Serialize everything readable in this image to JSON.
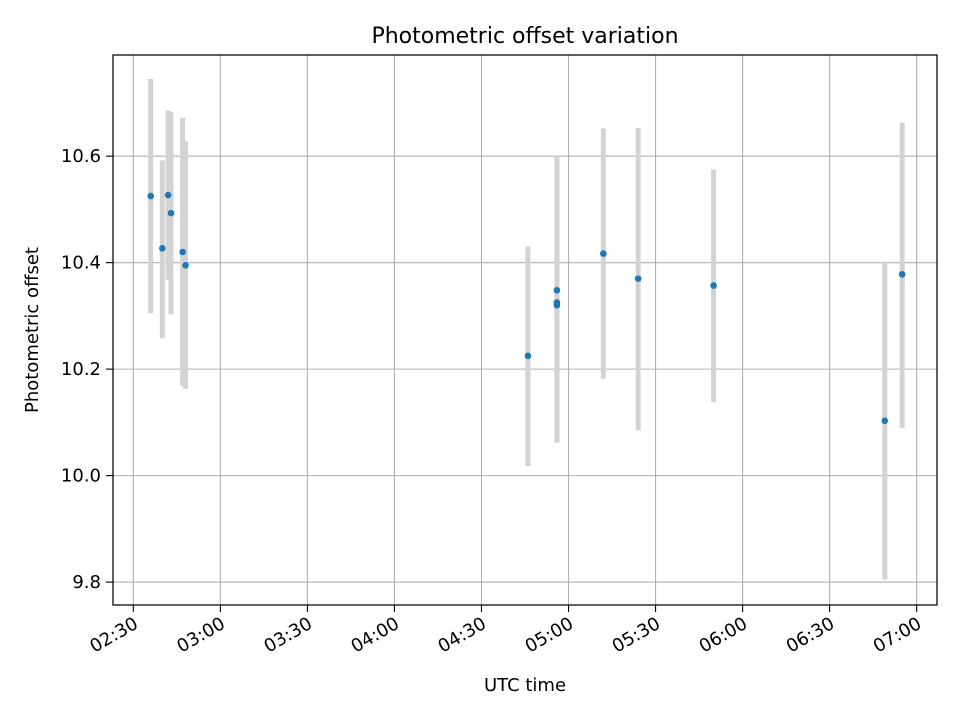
{
  "chart_data": {
    "type": "scatter",
    "title": "Photometric offset variation",
    "xlabel": "UTC time",
    "ylabel": "Photometric offset",
    "x_tick_labels": [
      "02:30",
      "03:00",
      "03:30",
      "04:00",
      "04:30",
      "05:00",
      "05:30",
      "06:00",
      "06:30",
      "07:00"
    ],
    "y_tick_labels": [
      "9.8",
      "10.0",
      "10.2",
      "10.4",
      "10.6"
    ],
    "x_ticks": [
      "02:30",
      "03:00",
      "03:30",
      "04:00",
      "04:30",
      "05:00",
      "05:30",
      "06:00",
      "06:30",
      "07:00"
    ],
    "y_ticks": [
      9.8,
      10.0,
      10.2,
      10.4,
      10.6
    ],
    "xlim": [
      "02:23",
      "07:07"
    ],
    "ylim": [
      9.757,
      10.79
    ],
    "grid": true,
    "marker_color": "#1f77b4",
    "errorbar_color": "#d3d3d3",
    "points": [
      {
        "time": "02:36",
        "y": 10.525,
        "err_low": 10.305,
        "err_high": 10.745
      },
      {
        "time": "02:40",
        "y": 10.427,
        "err_low": 10.258,
        "err_high": 10.592
      },
      {
        "time": "02:42",
        "y": 10.527,
        "err_low": 10.368,
        "err_high": 10.685
      },
      {
        "time": "02:43",
        "y": 10.493,
        "err_low": 10.303,
        "err_high": 10.683
      },
      {
        "time": "02:47",
        "y": 10.42,
        "err_low": 10.168,
        "err_high": 10.672
      },
      {
        "time": "02:48",
        "y": 10.395,
        "err_low": 10.163,
        "err_high": 10.628
      },
      {
        "time": "04:46",
        "y": 10.225,
        "err_low": 10.018,
        "err_high": 10.43
      },
      {
        "time": "04:56",
        "y": 10.32,
        "err_low": 10.062,
        "err_high": 10.58
      },
      {
        "time": "04:56",
        "y": 10.348,
        "err_low": 10.095,
        "err_high": 10.6
      },
      {
        "time": "04:56",
        "y": 10.325,
        "err_low": 10.065,
        "err_high": 10.59
      },
      {
        "time": "05:12",
        "y": 10.417,
        "err_low": 10.182,
        "err_high": 10.652
      },
      {
        "time": "05:24",
        "y": 10.37,
        "err_low": 10.085,
        "err_high": 10.653
      },
      {
        "time": "05:50",
        "y": 10.357,
        "err_low": 10.138,
        "err_high": 10.575
      },
      {
        "time": "06:49",
        "y": 10.103,
        "err_low": 9.805,
        "err_high": 10.4
      },
      {
        "time": "06:55",
        "y": 10.378,
        "err_low": 10.09,
        "err_high": 10.663
      }
    ]
  }
}
